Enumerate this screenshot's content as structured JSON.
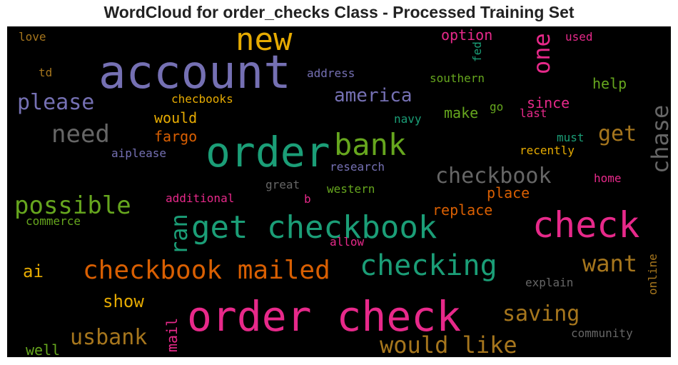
{
  "title": "WordCloud for order_checks Class - Processed Training Set",
  "colors": {
    "dark_green": "#1b9e77",
    "orange": "#d95f02",
    "purple": "#7570b3",
    "magenta": "#e7298a",
    "green": "#66a61e",
    "gold": "#e6ab02",
    "brown": "#a6761d",
    "gray": "#666666"
  },
  "chart_data": {
    "type": "wordcloud",
    "words": [
      {
        "text": "account",
        "size": 64,
        "color": "purple"
      },
      {
        "text": "order",
        "size": 58,
        "color": "dark_green"
      },
      {
        "text": "order check",
        "size": 58,
        "color": "magenta"
      },
      {
        "text": "check",
        "size": 50,
        "color": "magenta"
      },
      {
        "text": "get checkbook",
        "size": 44,
        "color": "dark_green"
      },
      {
        "text": "new",
        "size": 44,
        "color": "gold"
      },
      {
        "text": "bank",
        "size": 42,
        "color": "green"
      },
      {
        "text": "checking",
        "size": 40,
        "color": "dark_green"
      },
      {
        "text": "checkbook mailed",
        "size": 36,
        "color": "orange"
      },
      {
        "text": "need",
        "size": 34,
        "color": "gray"
      },
      {
        "text": "possible",
        "size": 34,
        "color": "green"
      },
      {
        "text": "would like",
        "size": 32,
        "color": "brown"
      },
      {
        "text": "want",
        "size": 32,
        "color": "brown"
      },
      {
        "text": "ran",
        "size": 32,
        "color": "dark_green"
      },
      {
        "text": "one",
        "size": 32,
        "color": "magenta"
      },
      {
        "text": "chase",
        "size": 32,
        "color": "gray"
      },
      {
        "text": "checkbook",
        "size": 30,
        "color": "gray"
      },
      {
        "text": "please",
        "size": 30,
        "color": "purple"
      },
      {
        "text": "usbank",
        "size": 30,
        "color": "brown"
      },
      {
        "text": "get",
        "size": 30,
        "color": "brown"
      },
      {
        "text": "saving",
        "size": 30,
        "color": "brown"
      },
      {
        "text": "america",
        "size": 26,
        "color": "purple"
      },
      {
        "text": "ai",
        "size": 24,
        "color": "gold"
      },
      {
        "text": "show",
        "size": 24,
        "color": "gold"
      },
      {
        "text": "option",
        "size": 20,
        "color": "magenta"
      },
      {
        "text": "fargo",
        "size": 20,
        "color": "orange"
      },
      {
        "text": "would",
        "size": 20,
        "color": "gold"
      },
      {
        "text": "help",
        "size": 20,
        "color": "green"
      },
      {
        "text": "make",
        "size": 20,
        "color": "green"
      },
      {
        "text": "since",
        "size": 20,
        "color": "magenta"
      },
      {
        "text": "replace",
        "size": 20,
        "color": "orange"
      },
      {
        "text": "place",
        "size": 20,
        "color": "orange"
      },
      {
        "text": "mail",
        "size": 20,
        "color": "magenta"
      },
      {
        "text": "online",
        "size": 16,
        "color": "brown"
      },
      {
        "text": "checbooks",
        "size": 16,
        "color": "gold"
      },
      {
        "text": "address",
        "size": 16,
        "color": "purple"
      },
      {
        "text": "southern",
        "size": 16,
        "color": "green"
      },
      {
        "text": "used",
        "size": 16,
        "color": "magenta"
      },
      {
        "text": "love",
        "size": 16,
        "color": "brown"
      },
      {
        "text": "td",
        "size": 16,
        "color": "brown"
      },
      {
        "text": "fed",
        "size": 16,
        "color": "dark_green"
      },
      {
        "text": "go",
        "size": 16,
        "color": "green"
      },
      {
        "text": "last",
        "size": 16,
        "color": "magenta"
      },
      {
        "text": "navy",
        "size": 16,
        "color": "dark_green"
      },
      {
        "text": "must",
        "size": 16,
        "color": "dark_green"
      },
      {
        "text": "recently",
        "size": 16,
        "color": "gold"
      },
      {
        "text": "aiplease",
        "size": 16,
        "color": "purple"
      },
      {
        "text": "research",
        "size": 16,
        "color": "purple"
      },
      {
        "text": "home",
        "size": 16,
        "color": "magenta"
      },
      {
        "text": "great",
        "size": 16,
        "color": "gray"
      },
      {
        "text": "western",
        "size": 16,
        "color": "green"
      },
      {
        "text": "additional",
        "size": 16,
        "color": "magenta"
      },
      {
        "text": "b",
        "size": 16,
        "color": "magenta"
      },
      {
        "text": "commerce",
        "size": 16,
        "color": "green"
      },
      {
        "text": "allow",
        "size": 16,
        "color": "magenta"
      },
      {
        "text": "explain",
        "size": 16,
        "color": "gray"
      },
      {
        "text": "community",
        "size": 16,
        "color": "gray"
      },
      {
        "text": "well",
        "size": 20,
        "color": "green"
      }
    ]
  }
}
